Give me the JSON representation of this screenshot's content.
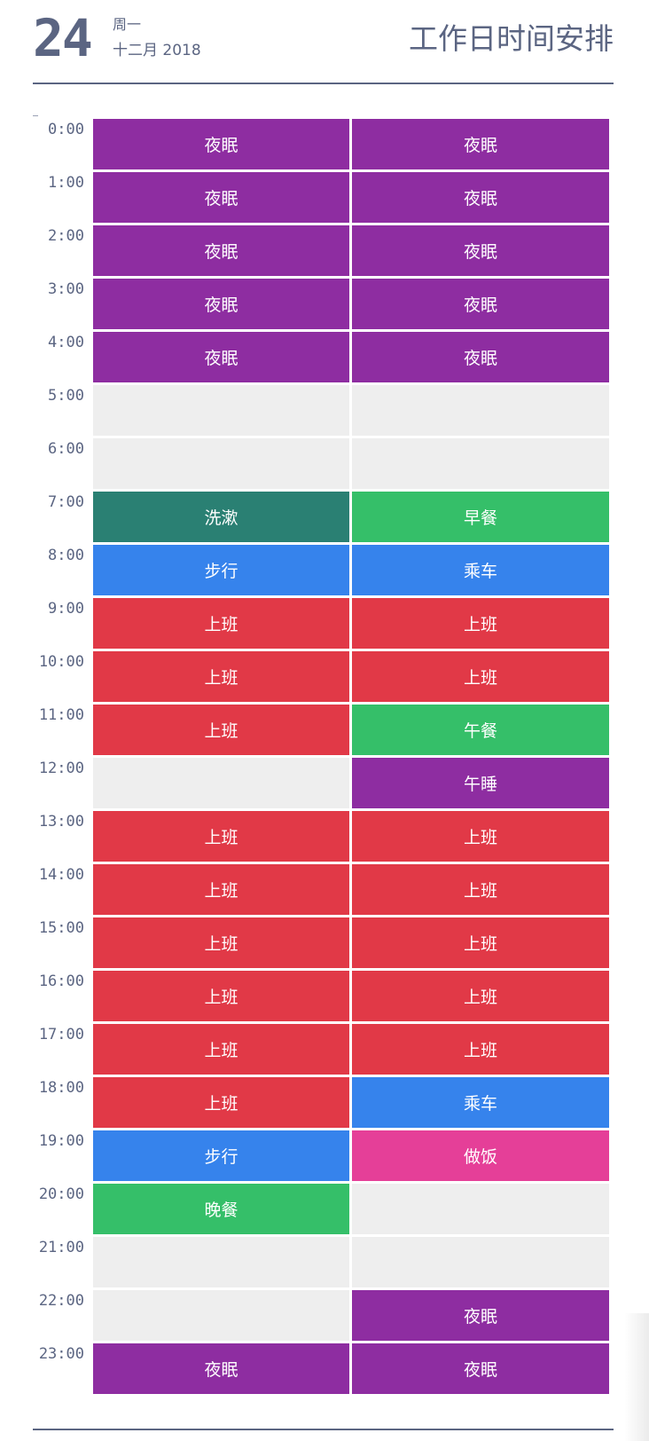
{
  "header": {
    "day": "24",
    "weekday": "周一",
    "month_year": "十二月 2018",
    "title": "工作日时间安排"
  },
  "colors": {
    "text": "#5b6582",
    "sleep": "#8e2da1",
    "wash": "#2a8073",
    "meal": "#35bf69",
    "transit": "#3683ec",
    "work": "#e13947",
    "cook": "#e53f98",
    "empty": "#eeeeee"
  },
  "schedule": [
    {
      "time": "0:00",
      "cells": [
        {
          "label": "夜眠",
          "kind": "sleep"
        },
        {
          "label": "夜眠",
          "kind": "sleep"
        }
      ]
    },
    {
      "time": "1:00",
      "cells": [
        {
          "label": "夜眠",
          "kind": "sleep"
        },
        {
          "label": "夜眠",
          "kind": "sleep"
        }
      ]
    },
    {
      "time": "2:00",
      "cells": [
        {
          "label": "夜眠",
          "kind": "sleep"
        },
        {
          "label": "夜眠",
          "kind": "sleep"
        }
      ]
    },
    {
      "time": "3:00",
      "cells": [
        {
          "label": "夜眠",
          "kind": "sleep"
        },
        {
          "label": "夜眠",
          "kind": "sleep"
        }
      ]
    },
    {
      "time": "4:00",
      "cells": [
        {
          "label": "夜眠",
          "kind": "sleep"
        },
        {
          "label": "夜眠",
          "kind": "sleep"
        }
      ]
    },
    {
      "time": "5:00",
      "cells": [
        {
          "label": "",
          "kind": "empty"
        },
        {
          "label": "",
          "kind": "empty"
        }
      ]
    },
    {
      "time": "6:00",
      "cells": [
        {
          "label": "",
          "kind": "empty"
        },
        {
          "label": "",
          "kind": "empty"
        }
      ]
    },
    {
      "time": "7:00",
      "cells": [
        {
          "label": "洗漱",
          "kind": "wash"
        },
        {
          "label": "早餐",
          "kind": "meal"
        }
      ]
    },
    {
      "time": "8:00",
      "cells": [
        {
          "label": "步行",
          "kind": "transit"
        },
        {
          "label": "乘车",
          "kind": "transit"
        }
      ]
    },
    {
      "time": "9:00",
      "cells": [
        {
          "label": "上班",
          "kind": "work"
        },
        {
          "label": "上班",
          "kind": "work"
        }
      ]
    },
    {
      "time": "10:00",
      "cells": [
        {
          "label": "上班",
          "kind": "work"
        },
        {
          "label": "上班",
          "kind": "work"
        }
      ]
    },
    {
      "time": "11:00",
      "cells": [
        {
          "label": "上班",
          "kind": "work"
        },
        {
          "label": "午餐",
          "kind": "meal"
        }
      ]
    },
    {
      "time": "12:00",
      "cells": [
        {
          "label": "",
          "kind": "empty"
        },
        {
          "label": "午睡",
          "kind": "sleep"
        }
      ]
    },
    {
      "time": "13:00",
      "cells": [
        {
          "label": "上班",
          "kind": "work"
        },
        {
          "label": "上班",
          "kind": "work"
        }
      ]
    },
    {
      "time": "14:00",
      "cells": [
        {
          "label": "上班",
          "kind": "work"
        },
        {
          "label": "上班",
          "kind": "work"
        }
      ]
    },
    {
      "time": "15:00",
      "cells": [
        {
          "label": "上班",
          "kind": "work"
        },
        {
          "label": "上班",
          "kind": "work"
        }
      ]
    },
    {
      "time": "16:00",
      "cells": [
        {
          "label": "上班",
          "kind": "work"
        },
        {
          "label": "上班",
          "kind": "work"
        }
      ]
    },
    {
      "time": "17:00",
      "cells": [
        {
          "label": "上班",
          "kind": "work"
        },
        {
          "label": "上班",
          "kind": "work"
        }
      ]
    },
    {
      "time": "18:00",
      "cells": [
        {
          "label": "上班",
          "kind": "work"
        },
        {
          "label": "乘车",
          "kind": "transit"
        }
      ]
    },
    {
      "time": "19:00",
      "cells": [
        {
          "label": "步行",
          "kind": "transit"
        },
        {
          "label": "做饭",
          "kind": "cook"
        }
      ]
    },
    {
      "time": "20:00",
      "cells": [
        {
          "label": "晚餐",
          "kind": "meal"
        },
        {
          "label": "",
          "kind": "empty"
        }
      ]
    },
    {
      "time": "21:00",
      "cells": [
        {
          "label": "",
          "kind": "empty"
        },
        {
          "label": "",
          "kind": "empty"
        }
      ]
    },
    {
      "time": "22:00",
      "cells": [
        {
          "label": "",
          "kind": "empty"
        },
        {
          "label": "夜眠",
          "kind": "sleep"
        }
      ]
    },
    {
      "time": "23:00",
      "cells": [
        {
          "label": "夜眠",
          "kind": "sleep"
        },
        {
          "label": "夜眠",
          "kind": "sleep"
        }
      ]
    }
  ]
}
